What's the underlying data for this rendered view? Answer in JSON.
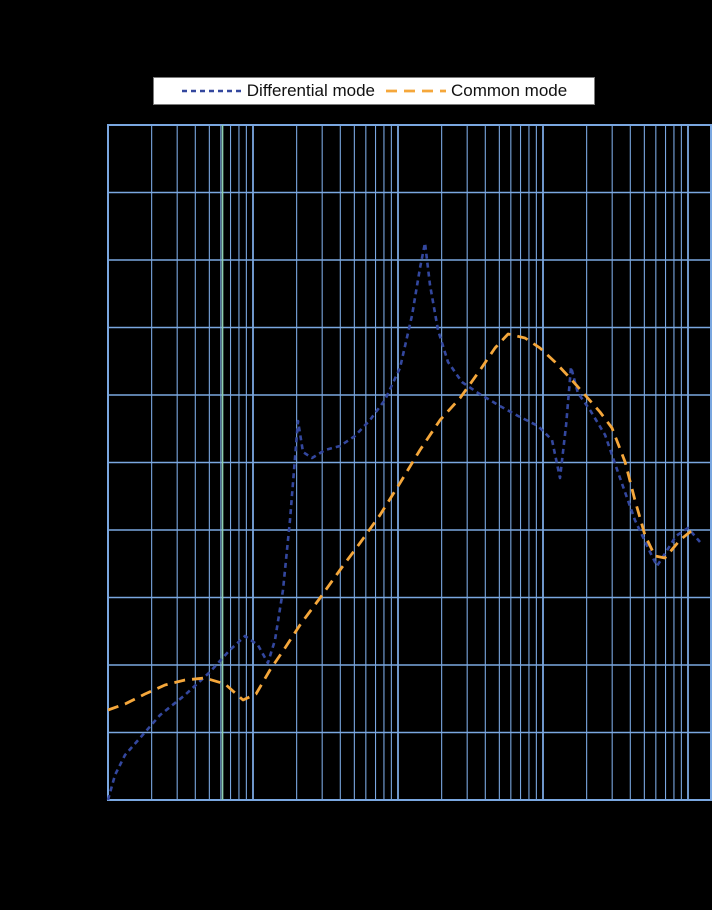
{
  "legend": {
    "items": [
      {
        "label": "Differential mode",
        "color": "#33479e",
        "dash": [
          5,
          4
        ]
      },
      {
        "label": "Common mode",
        "color": "#f5a73b",
        "dash": [
          11,
          7
        ]
      }
    ]
  },
  "chart_data": {
    "type": "line",
    "title": "",
    "xlabel": "",
    "ylabel": "",
    "x_axis": {
      "scale": "log",
      "decades_span": 4.17,
      "tick_labels_visible": false
    },
    "y_axis": {
      "scale": "linear",
      "divisions": 10,
      "tick_labels_visible": false
    },
    "background": "#000000",
    "grid": {
      "on": true,
      "color": "#7aa7e0",
      "major_width": 1.8,
      "minor_width": 1.1
    },
    "highlight_gridline": {
      "x_decades": 0.79,
      "color": "#8fd0b0"
    },
    "legend_position": "top-center",
    "series": [
      {
        "name": "Differential mode",
        "color": "#33479e",
        "dash": [
          5,
          4
        ],
        "width": 2.6,
        "points": [
          [
            0.0,
            0.0
          ],
          [
            0.048,
            0.37
          ],
          [
            0.117,
            0.667
          ],
          [
            0.221,
            0.919
          ],
          [
            0.359,
            1.259
          ],
          [
            0.531,
            1.556
          ],
          [
            0.703,
            1.896
          ],
          [
            0.841,
            2.222
          ],
          [
            0.945,
            2.43
          ],
          [
            1.034,
            2.296
          ],
          [
            1.103,
            2.03
          ],
          [
            1.152,
            2.37
          ],
          [
            1.207,
            3.111
          ],
          [
            1.255,
            4.148
          ],
          [
            1.31,
            5.615
          ],
          [
            1.345,
            5.156
          ],
          [
            1.407,
            5.067
          ],
          [
            1.497,
            5.185
          ],
          [
            1.6,
            5.244
          ],
          [
            1.703,
            5.393
          ],
          [
            1.807,
            5.63
          ],
          [
            1.91,
            5.926
          ],
          [
            2.014,
            6.4
          ],
          [
            2.097,
            7.185
          ],
          [
            2.152,
            7.881
          ],
          [
            2.186,
            8.252
          ],
          [
            2.221,
            7.63
          ],
          [
            2.276,
            6.963
          ],
          [
            2.345,
            6.489
          ],
          [
            2.441,
            6.193
          ],
          [
            2.552,
            6.03
          ],
          [
            2.69,
            5.852
          ],
          [
            2.828,
            5.689
          ],
          [
            2.966,
            5.541
          ],
          [
            3.062,
            5.333
          ],
          [
            3.117,
            4.77
          ],
          [
            3.159,
            5.556
          ],
          [
            3.193,
            6.415
          ],
          [
            3.241,
            6.03
          ],
          [
            3.324,
            5.778
          ],
          [
            3.428,
            5.407
          ],
          [
            3.531,
            4.77
          ],
          [
            3.634,
            4.148
          ],
          [
            3.738,
            3.674
          ],
          [
            3.786,
            3.467
          ],
          [
            3.848,
            3.674
          ],
          [
            3.917,
            3.911
          ],
          [
            4.0,
            4.03
          ],
          [
            4.083,
            3.822
          ]
        ]
      },
      {
        "name": "Common mode",
        "color": "#f5a73b",
        "dash": [
          11,
          7
        ],
        "width": 2.8,
        "points": [
          [
            0.0,
            1.333
          ],
          [
            0.117,
            1.422
          ],
          [
            0.255,
            1.57
          ],
          [
            0.393,
            1.704
          ],
          [
            0.531,
            1.778
          ],
          [
            0.669,
            1.807
          ],
          [
            0.807,
            1.719
          ],
          [
            0.931,
            1.481
          ],
          [
            1.021,
            1.57
          ],
          [
            1.117,
            1.926
          ],
          [
            1.221,
            2.252
          ],
          [
            1.324,
            2.593
          ],
          [
            1.462,
            2.993
          ],
          [
            1.6,
            3.407
          ],
          [
            1.738,
            3.807
          ],
          [
            1.876,
            4.222
          ],
          [
            2.014,
            4.696
          ],
          [
            2.152,
            5.185
          ],
          [
            2.29,
            5.63
          ],
          [
            2.428,
            5.956
          ],
          [
            2.566,
            6.37
          ],
          [
            2.669,
            6.696
          ],
          [
            2.759,
            6.904
          ],
          [
            2.876,
            6.844
          ],
          [
            2.979,
            6.696
          ],
          [
            3.083,
            6.489
          ],
          [
            3.186,
            6.252
          ],
          [
            3.29,
            6.0
          ],
          [
            3.393,
            5.748
          ],
          [
            3.476,
            5.511
          ],
          [
            3.566,
            5.007
          ],
          [
            3.634,
            4.444
          ],
          [
            3.703,
            3.926
          ],
          [
            3.772,
            3.615
          ],
          [
            3.841,
            3.585
          ],
          [
            3.945,
            3.852
          ],
          [
            4.048,
            4.03
          ]
        ]
      }
    ]
  }
}
